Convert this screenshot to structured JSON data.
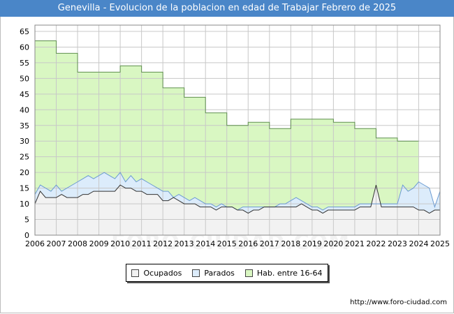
{
  "title": "Genevilla - Evolucion de la poblacion en edad de Trabajar Febrero de 2025",
  "footer": "http://www.foro-ciudad.com",
  "watermark": "FORO-CIUDAD.COM",
  "colors": {
    "title_bg": "#4a86c8",
    "hab_fill": "#d9f7c2",
    "hab_line": "#5f8f4e",
    "parados_fill": "#dcecfb",
    "parados_line": "#6c9bd1",
    "ocupados_fill": "#f2f2f2",
    "ocupados_line": "#333333",
    "grid": "#c8c8c8"
  },
  "chart_data": {
    "type": "area",
    "title": "Genevilla - Evolucion de la poblacion en edad de Trabajar Febrero de 2025",
    "xlim": [
      2006,
      2025
    ],
    "ylim": [
      0,
      67
    ],
    "x_ticks": [
      "2006",
      "2007",
      "2008",
      "2009",
      "2010",
      "2011",
      "2012",
      "2013",
      "2014",
      "2015",
      "2016",
      "2017",
      "2018",
      "2019",
      "2020",
      "2021",
      "2022",
      "2023",
      "2024",
      "2025"
    ],
    "y_ticks": [
      0,
      5,
      10,
      15,
      20,
      25,
      30,
      35,
      40,
      45,
      50,
      55,
      60,
      65
    ],
    "legend": [
      "Ocupados",
      "Parados",
      "Hab. entre 16-64"
    ],
    "series": [
      {
        "name": "Hab. entre 16-64",
        "steps": [
          {
            "x0": 2006,
            "x1": 2007,
            "y": 62
          },
          {
            "x0": 2007,
            "x1": 2008,
            "y": 58
          },
          {
            "x0": 2008,
            "x1": 2010,
            "y": 52
          },
          {
            "x0": 2010,
            "x1": 2011,
            "y": 54
          },
          {
            "x0": 2011,
            "x1": 2012,
            "y": 52
          },
          {
            "x0": 2012,
            "x1": 2013,
            "y": 47
          },
          {
            "x0": 2013,
            "x1": 2014,
            "y": 44
          },
          {
            "x0": 2014,
            "x1": 2015,
            "y": 39
          },
          {
            "x0": 2015,
            "x1": 2016,
            "y": 35
          },
          {
            "x0": 2016,
            "x1": 2017,
            "y": 36
          },
          {
            "x0": 2017,
            "x1": 2018,
            "y": 34
          },
          {
            "x0": 2018,
            "x1": 2020,
            "y": 37
          },
          {
            "x0": 2020,
            "x1": 2021,
            "y": 36
          },
          {
            "x0": 2021,
            "x1": 2022,
            "y": 34
          },
          {
            "x0": 2022,
            "x1": 2023,
            "y": 31
          },
          {
            "x0": 2023,
            "x1": 2024,
            "y": 30
          }
        ]
      },
      {
        "name": "Parados",
        "x": [
          2006,
          2006.25,
          2006.5,
          2006.75,
          2007,
          2007.25,
          2007.5,
          2007.75,
          2008,
          2008.25,
          2008.5,
          2008.75,
          2009,
          2009.25,
          2009.5,
          2009.75,
          2010,
          2010.25,
          2010.5,
          2010.75,
          2011,
          2011.25,
          2011.5,
          2011.75,
          2012,
          2012.25,
          2012.5,
          2012.75,
          2013,
          2013.25,
          2013.5,
          2013.75,
          2014,
          2014.25,
          2014.5,
          2014.75,
          2015,
          2015.25,
          2015.5,
          2015.75,
          2016,
          2016.25,
          2016.5,
          2016.75,
          2017,
          2017.25,
          2017.5,
          2017.75,
          2018,
          2018.25,
          2018.5,
          2018.75,
          2019,
          2019.25,
          2019.5,
          2019.75,
          2020,
          2020.25,
          2020.5,
          2020.75,
          2021,
          2021.25,
          2021.5,
          2021.75,
          2022,
          2022.25,
          2022.5,
          2022.75,
          2023,
          2023.25,
          2023.5,
          2023.75,
          2024,
          2024.25,
          2024.5,
          2024.75,
          2025
        ],
        "values": [
          13,
          16,
          15,
          14,
          16,
          14,
          15,
          16,
          17,
          18,
          19,
          18,
          19,
          20,
          19,
          18,
          20,
          17,
          19,
          17,
          18,
          17,
          16,
          15,
          14,
          14,
          12,
          13,
          12,
          11,
          12,
          11,
          10,
          10,
          9,
          10,
          9,
          9,
          8,
          9,
          9,
          9,
          9,
          9,
          9,
          9,
          10,
          10,
          11,
          12,
          11,
          10,
          9,
          9,
          8,
          9,
          9,
          9,
          9,
          9,
          9,
          10,
          10,
          10,
          10,
          10,
          10,
          10,
          10,
          16,
          14,
          15,
          17,
          16,
          15,
          9,
          14
        ]
      },
      {
        "name": "Ocupados",
        "x": [
          2006,
          2006.25,
          2006.5,
          2006.75,
          2007,
          2007.25,
          2007.5,
          2007.75,
          2008,
          2008.25,
          2008.5,
          2008.75,
          2009,
          2009.25,
          2009.5,
          2009.75,
          2010,
          2010.25,
          2010.5,
          2010.75,
          2011,
          2011.25,
          2011.5,
          2011.75,
          2012,
          2012.25,
          2012.5,
          2012.75,
          2013,
          2013.25,
          2013.5,
          2013.75,
          2014,
          2014.25,
          2014.5,
          2014.75,
          2015,
          2015.25,
          2015.5,
          2015.75,
          2016,
          2016.25,
          2016.5,
          2016.75,
          2017,
          2017.25,
          2017.5,
          2017.75,
          2018,
          2018.25,
          2018.5,
          2018.75,
          2019,
          2019.25,
          2019.5,
          2019.75,
          2020,
          2020.25,
          2020.5,
          2020.75,
          2021,
          2021.25,
          2021.5,
          2021.75,
          2022,
          2022.25,
          2022.5,
          2022.75,
          2023,
          2023.25,
          2023.5,
          2023.75,
          2024,
          2024.25,
          2024.5,
          2024.75,
          2025
        ],
        "values": [
          10,
          14,
          12,
          12,
          12,
          13,
          12,
          12,
          12,
          13,
          13,
          14,
          14,
          14,
          14,
          14,
          16,
          15,
          15,
          14,
          14,
          13,
          13,
          13,
          11,
          11,
          12,
          11,
          10,
          10,
          10,
          9,
          9,
          9,
          8,
          9,
          9,
          9,
          8,
          8,
          7,
          8,
          8,
          9,
          9,
          9,
          9,
          9,
          9,
          9,
          10,
          9,
          8,
          8,
          7,
          8,
          8,
          8,
          8,
          8,
          8,
          9,
          9,
          9,
          16,
          9,
          9,
          9,
          9,
          9,
          9,
          9,
          8,
          8,
          7,
          8,
          8
        ]
      }
    ]
  }
}
